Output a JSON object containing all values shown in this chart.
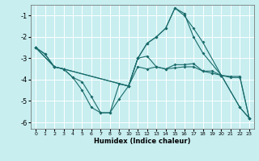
{
  "xlabel": "Humidex (Indice chaleur)",
  "bg_color": "#c8eef0",
  "line_color": "#1a6b6b",
  "grid_color": "#ffffff",
  "series": [
    {
      "x": [
        0,
        1,
        2,
        3,
        4,
        5,
        6,
        7,
        8,
        9,
        10,
        11,
        12,
        13,
        14,
        15,
        16,
        17,
        18,
        19,
        20,
        21,
        22,
        23
      ],
      "y": [
        -2.5,
        -2.8,
        -3.4,
        -3.5,
        -3.9,
        -4.5,
        -5.3,
        -5.55,
        -5.55,
        -4.9,
        -4.3,
        -3.0,
        -2.9,
        -3.4,
        -3.5,
        -3.3,
        -3.3,
        -3.25,
        -3.6,
        -3.6,
        -3.8,
        -3.85,
        -3.85,
        -5.8
      ]
    },
    {
      "x": [
        0,
        1,
        2,
        3,
        4,
        5,
        6,
        7,
        8,
        9,
        10,
        11,
        12,
        13,
        14,
        15,
        16,
        17,
        18,
        19,
        20,
        21,
        22,
        23
      ],
      "y": [
        -2.5,
        -2.8,
        -3.4,
        -3.5,
        -3.9,
        -4.1,
        -4.8,
        -5.55,
        -5.55,
        -4.2,
        -4.3,
        -3.4,
        -3.5,
        -3.4,
        -3.5,
        -3.45,
        -3.4,
        -3.4,
        -3.6,
        -3.7,
        -3.8,
        -3.9,
        -3.9,
        -5.8
      ]
    },
    {
      "x": [
        0,
        2,
        3,
        10,
        11,
        12,
        13,
        14,
        15,
        16,
        17,
        18,
        20,
        22,
        23
      ],
      "y": [
        -2.5,
        -3.4,
        -3.5,
        -4.3,
        -3.0,
        -2.3,
        -2.0,
        -1.6,
        -0.65,
        -0.9,
        -2.0,
        -2.75,
        -3.8,
        -5.3,
        -5.8
      ]
    },
    {
      "x": [
        0,
        2,
        3,
        10,
        11,
        12,
        13,
        14,
        15,
        16,
        17,
        18,
        20,
        22,
        23
      ],
      "y": [
        -2.5,
        -3.4,
        -3.5,
        -4.3,
        -3.0,
        -2.3,
        -2.0,
        -1.6,
        -0.65,
        -1.0,
        -1.6,
        -2.25,
        -3.8,
        -5.3,
        -5.8
      ]
    }
  ],
  "xlim": [
    -0.5,
    23.5
  ],
  "ylim": [
    -6.3,
    -0.5
  ],
  "xticks": [
    0,
    1,
    2,
    3,
    4,
    5,
    6,
    7,
    8,
    9,
    10,
    11,
    12,
    13,
    14,
    15,
    16,
    17,
    18,
    19,
    20,
    21,
    22,
    23
  ],
  "yticks": [
    -6,
    -5,
    -4,
    -3,
    -2,
    -1
  ]
}
